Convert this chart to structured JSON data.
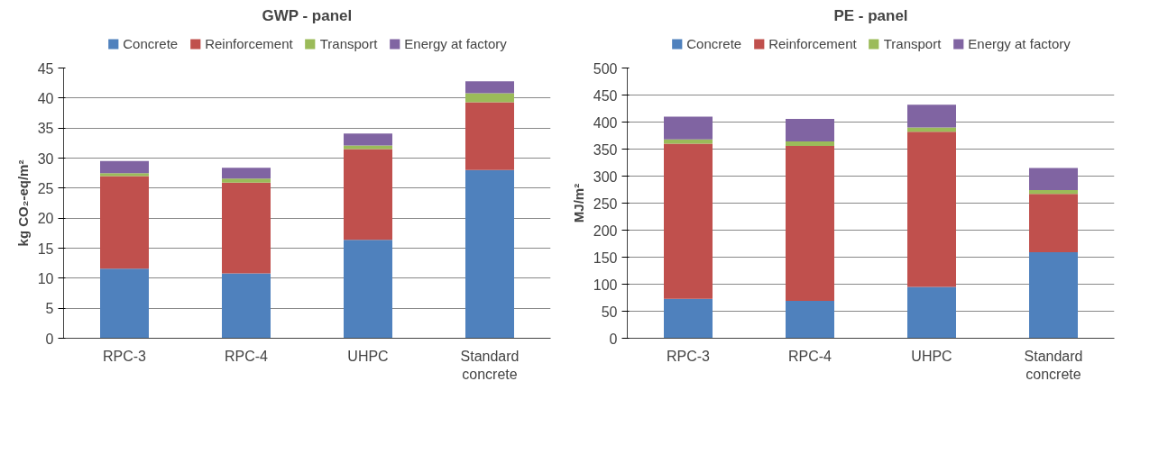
{
  "chart_data": [
    {
      "type": "bar",
      "title": "GWP - panel",
      "ylabel": "kg CO₂-eq/m²",
      "categories": [
        "RPC-3",
        "RPC-4",
        "UHPC",
        "Standard concrete"
      ],
      "stacked": true,
      "legend": "top",
      "grid": "y",
      "ylim": [
        0,
        45
      ],
      "yticks": [
        0,
        5,
        10,
        15,
        20,
        25,
        30,
        35,
        40,
        45
      ],
      "series": [
        {
          "name": "Concrete",
          "color": "#4f81bd",
          "values": [
            11.6,
            10.8,
            16.4,
            28.0
          ]
        },
        {
          "name": "Reinforcement",
          "color": "#c0504d",
          "values": [
            15.4,
            15.1,
            15.1,
            11.3
          ]
        },
        {
          "name": "Transport",
          "color": "#9bbb59",
          "values": [
            0.5,
            0.7,
            0.6,
            1.5
          ]
        },
        {
          "name": "Energy at factory",
          "color": "#8064a2",
          "values": [
            2.0,
            1.8,
            2.0,
            2.0
          ]
        }
      ]
    },
    {
      "type": "bar",
      "title": "PE - panel",
      "ylabel": "MJ/m²",
      "categories": [
        "RPC-3",
        "RPC-4",
        "UHPC",
        "Standard concrete"
      ],
      "stacked": true,
      "legend": "top",
      "grid": "y",
      "ylim": [
        0,
        500
      ],
      "yticks": [
        0,
        50,
        100,
        150,
        200,
        250,
        300,
        350,
        400,
        450,
        500
      ],
      "series": [
        {
          "name": "Concrete",
          "color": "#4f81bd",
          "values": [
            73,
            69,
            95,
            159
          ]
        },
        {
          "name": "Reinforcement",
          "color": "#c0504d",
          "values": [
            287,
            287,
            287,
            108
          ]
        },
        {
          "name": "Transport",
          "color": "#9bbb59",
          "values": [
            8,
            8,
            8,
            7
          ]
        },
        {
          "name": "Energy at factory",
          "color": "#8064a2",
          "values": [
            42,
            42,
            42,
            41
          ]
        }
      ]
    }
  ]
}
